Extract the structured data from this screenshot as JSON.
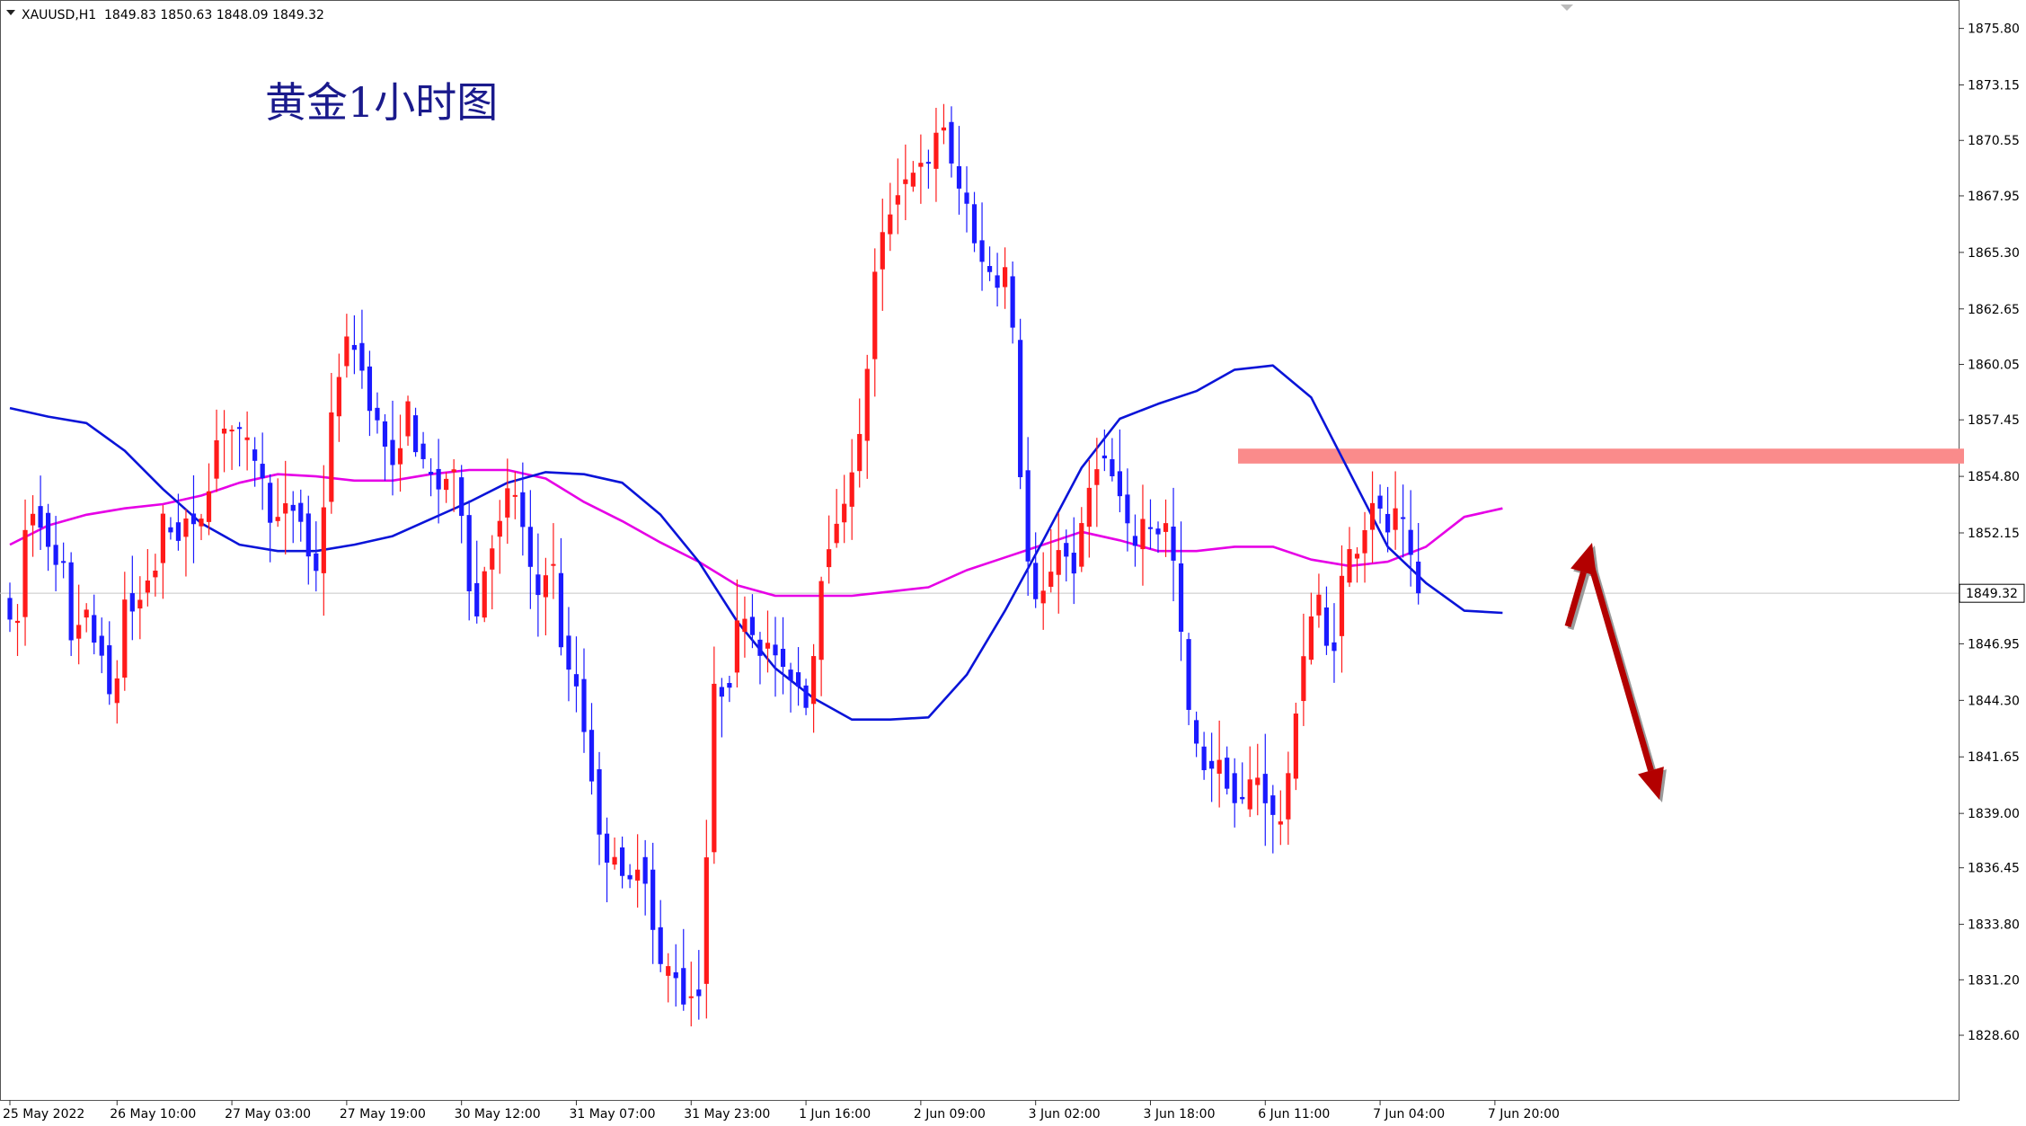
{
  "header": {
    "symbol": "XAUUSD,H1",
    "ohlc": "1849.83 1850.63 1848.09 1849.32"
  },
  "chart_data": {
    "type": "candlestick",
    "title": "黄金1小时图",
    "ylim": [
      1827.0,
      1876.5
    ],
    "grid": false,
    "y_ticks": [
      "1875.80",
      "1873.15",
      "1870.55",
      "1867.95",
      "1865.30",
      "1862.65",
      "1860.05",
      "1857.45",
      "1854.80",
      "1852.15",
      "1846.95",
      "1844.30",
      "1841.65",
      "1839.00",
      "1836.45",
      "1833.80",
      "1831.20",
      "1828.60"
    ],
    "x_ticks": [
      {
        "label": "25 May 2022",
        "bar": 0
      },
      {
        "label": "26 May 10:00",
        "bar": 14
      },
      {
        "label": "27 May 03:00",
        "bar": 29
      },
      {
        "label": "27 May 19:00",
        "bar": 44
      },
      {
        "label": "30 May 12:00",
        "bar": 59
      },
      {
        "label": "31 May 07:00",
        "bar": 74
      },
      {
        "label": "31 May 23:00",
        "bar": 89
      },
      {
        "label": "1 Jun 16:00",
        "bar": 104
      },
      {
        "label": "2 Jun 09:00",
        "bar": 119
      },
      {
        "label": "3 Jun 02:00",
        "bar": 134
      },
      {
        "label": "3 Jun 18:00",
        "bar": 149
      },
      {
        "label": "6 Jun 11:00",
        "bar": 164
      },
      {
        "label": "7 Jun 04:00",
        "bar": 179
      },
      {
        "label": "7 Jun 20:00",
        "bar": 194
      }
    ],
    "current_price": "1849.32",
    "resistance_zone": [
      1855.4,
      1856.1
    ],
    "blue_line_anchors": [
      [
        0,
        1858.0
      ],
      [
        5,
        1857.6
      ],
      [
        10,
        1857.3
      ],
      [
        15,
        1856.0
      ],
      [
        20,
        1854.2
      ],
      [
        25,
        1852.6
      ],
      [
        30,
        1851.6
      ],
      [
        35,
        1851.3
      ],
      [
        40,
        1851.3
      ],
      [
        45,
        1851.6
      ],
      [
        50,
        1852.0
      ],
      [
        55,
        1852.8
      ],
      [
        60,
        1853.6
      ],
      [
        65,
        1854.5
      ],
      [
        70,
        1855.0
      ],
      [
        75,
        1854.9
      ],
      [
        80,
        1854.5
      ],
      [
        85,
        1853.0
      ],
      [
        90,
        1850.8
      ],
      [
        95,
        1848.0
      ],
      [
        100,
        1845.8
      ],
      [
        105,
        1844.4
      ],
      [
        110,
        1843.4
      ],
      [
        115,
        1843.4
      ],
      [
        120,
        1843.5
      ],
      [
        125,
        1845.5
      ],
      [
        130,
        1848.5
      ],
      [
        135,
        1851.8
      ],
      [
        140,
        1855.2
      ],
      [
        145,
        1857.5
      ],
      [
        150,
        1858.2
      ],
      [
        155,
        1858.8
      ],
      [
        160,
        1859.8
      ],
      [
        165,
        1860.0
      ],
      [
        170,
        1858.5
      ],
      [
        175,
        1855.0
      ],
      [
        180,
        1851.5
      ],
      [
        185,
        1849.8
      ],
      [
        190,
        1848.5
      ],
      [
        195,
        1848.4
      ]
    ],
    "magenta_line_anchors": [
      [
        0,
        1851.6
      ],
      [
        5,
        1852.5
      ],
      [
        10,
        1853.0
      ],
      [
        15,
        1853.3
      ],
      [
        20,
        1853.5
      ],
      [
        25,
        1853.9
      ],
      [
        30,
        1854.5
      ],
      [
        35,
        1854.9
      ],
      [
        40,
        1854.8
      ],
      [
        45,
        1854.6
      ],
      [
        50,
        1854.6
      ],
      [
        55,
        1854.9
      ],
      [
        60,
        1855.1
      ],
      [
        65,
        1855.1
      ],
      [
        70,
        1854.7
      ],
      [
        75,
        1853.6
      ],
      [
        80,
        1852.7
      ],
      [
        85,
        1851.7
      ],
      [
        90,
        1850.8
      ],
      [
        95,
        1849.7
      ],
      [
        100,
        1849.2
      ],
      [
        105,
        1849.2
      ],
      [
        110,
        1849.2
      ],
      [
        115,
        1849.4
      ],
      [
        120,
        1849.6
      ],
      [
        125,
        1850.4
      ],
      [
        130,
        1851.0
      ],
      [
        135,
        1851.6
      ],
      [
        140,
        1852.2
      ],
      [
        145,
        1851.8
      ],
      [
        150,
        1851.3
      ],
      [
        155,
        1851.3
      ],
      [
        160,
        1851.5
      ],
      [
        165,
        1851.5
      ],
      [
        170,
        1850.9
      ],
      [
        175,
        1850.6
      ],
      [
        180,
        1850.8
      ],
      [
        185,
        1851.5
      ],
      [
        190,
        1852.9
      ],
      [
        195,
        1853.3
      ]
    ],
    "price_path": [
      [
        0,
        1849.5
      ],
      [
        1,
        1846.0
      ],
      [
        2,
        1850.0
      ],
      [
        3,
        1854.5
      ],
      [
        4,
        1852.0
      ],
      [
        5,
        1853.5
      ],
      [
        6,
        1849.0
      ],
      [
        7,
        1852.0
      ],
      [
        8,
        1849.0
      ],
      [
        9,
        1845.5
      ],
      [
        10,
        1850.5
      ],
      [
        11,
        1846.0
      ],
      [
        12,
        1848.0
      ],
      [
        13,
        1845.5
      ],
      [
        14,
        1843.0
      ],
      [
        15,
        1848.0
      ],
      [
        16,
        1850.0
      ],
      [
        17,
        1847.0
      ],
      [
        18,
        1851.0
      ],
      [
        19,
        1849.0
      ],
      [
        20,
        1852.0
      ],
      [
        21,
        1853.5
      ],
      [
        22,
        1851.0
      ],
      [
        23,
        1853.0
      ],
      [
        24,
        1852.5
      ],
      [
        25,
        1852.0
      ],
      [
        26,
        1854.0
      ],
      [
        27,
        1855.0
      ],
      [
        28,
        1858.0
      ],
      [
        29,
        1856.5
      ],
      [
        30,
        1857.5
      ],
      [
        31,
        1856.0
      ],
      [
        32,
        1856.5
      ],
      [
        33,
        1855.0
      ],
      [
        34,
        1854.0
      ],
      [
        35,
        1852.0
      ],
      [
        36,
        1853.5
      ],
      [
        37,
        1853.0
      ],
      [
        38,
        1853.5
      ],
      [
        39,
        1852.0
      ],
      [
        40,
        1850.0
      ],
      [
        41,
        1851.0
      ],
      [
        42,
        1856.0
      ],
      [
        43,
        1859.0
      ],
      [
        44,
        1860.5
      ],
      [
        45,
        1861.5
      ],
      [
        46,
        1860.5
      ],
      [
        47,
        1859.0
      ],
      [
        48,
        1857.5
      ],
      [
        49,
        1857.0
      ],
      [
        50,
        1855.5
      ],
      [
        51,
        1854.5
      ],
      [
        52,
        1858.5
      ],
      [
        53,
        1857.5
      ],
      [
        54,
        1855.0
      ],
      [
        55,
        1855.5
      ],
      [
        56,
        1854.0
      ],
      [
        57,
        1854.5
      ],
      [
        58,
        1855.0
      ],
      [
        59,
        1854.5
      ],
      [
        60,
        1852.0
      ],
      [
        61,
        1847.5
      ],
      [
        62,
        1849.0
      ],
      [
        63,
        1852.0
      ],
      [
        64,
        1851.5
      ],
      [
        65,
        1853.5
      ],
      [
        66,
        1854.5
      ],
      [
        67,
        1853.5
      ],
      [
        68,
        1851.0
      ],
      [
        69,
        1849.5
      ],
      [
        70,
        1849.0
      ],
      [
        71,
        1852.0
      ],
      [
        72,
        1849.0
      ],
      [
        73,
        1845.0
      ],
      [
        74,
        1846.0
      ],
      [
        75,
        1844.0
      ],
      [
        76,
        1842.0
      ],
      [
        77,
        1839.5
      ],
      [
        78,
        1836.0
      ],
      [
        79,
        1838.0
      ],
      [
        80,
        1836.5
      ],
      [
        81,
        1835.0
      ],
      [
        82,
        1836.5
      ],
      [
        83,
        1837.0
      ],
      [
        84,
        1835.0
      ],
      [
        85,
        1832.0
      ],
      [
        86,
        1831.5
      ],
      [
        87,
        1832.0
      ],
      [
        88,
        1831.0
      ],
      [
        89,
        1829.5
      ],
      [
        90,
        1831.5
      ],
      [
        91,
        1830.0
      ],
      [
        92,
        1844.0
      ],
      [
        93,
        1845.5
      ],
      [
        94,
        1844.0
      ],
      [
        95,
        1846.5
      ],
      [
        96,
        1849.0
      ],
      [
        97,
        1848.0
      ],
      [
        98,
        1847.0
      ],
      [
        99,
        1846.5
      ],
      [
        100,
        1847.0
      ],
      [
        101,
        1846.0
      ],
      [
        102,
        1845.0
      ],
      [
        103,
        1846.0
      ],
      [
        104,
        1844.0
      ],
      [
        105,
        1844.5
      ],
      [
        106,
        1848.5
      ],
      [
        107,
        1852.0
      ],
      [
        108,
        1851.5
      ],
      [
        109,
        1853.0
      ],
      [
        110,
        1854.5
      ],
      [
        111,
        1856.0
      ],
      [
        112,
        1857.0
      ],
      [
        113,
        1863.0
      ],
      [
        114,
        1865.5
      ],
      [
        115,
        1866.5
      ],
      [
        116,
        1868.0
      ],
      [
        117,
        1868.5
      ],
      [
        118,
        1869.0
      ],
      [
        119,
        1869.5
      ],
      [
        120,
        1869.0
      ],
      [
        121,
        1869.5
      ],
      [
        122,
        1872.5
      ],
      [
        123,
        1870.0
      ],
      [
        124,
        1868.5
      ],
      [
        125,
        1868.0
      ],
      [
        126,
        1867.0
      ],
      [
        127,
        1865.0
      ],
      [
        128,
        1864.5
      ],
      [
        129,
        1864.5
      ],
      [
        130,
        1863.5
      ],
      [
        131,
        1865.5
      ],
      [
        132,
        1857.5
      ],
      [
        133,
        1852.5
      ],
      [
        134,
        1849.0
      ],
      [
        135,
        1848.5
      ],
      [
        136,
        1850.0
      ],
      [
        137,
        1851.0
      ],
      [
        138,
        1852.0
      ],
      [
        139,
        1850.0
      ],
      [
        140,
        1851.0
      ],
      [
        141,
        1853.5
      ],
      [
        142,
        1855.0
      ],
      [
        143,
        1856.0
      ],
      [
        144,
        1855.0
      ],
      [
        145,
        1854.5
      ],
      [
        146,
        1853.0
      ],
      [
        147,
        1851.5
      ],
      [
        148,
        1852.0
      ],
      [
        149,
        1853.5
      ],
      [
        150,
        1851.5
      ],
      [
        151,
        1853.0
      ],
      [
        152,
        1852.0
      ],
      [
        153,
        1849.5
      ],
      [
        154,
        1845.0
      ],
      [
        155,
        1842.5
      ],
      [
        156,
        1841.5
      ],
      [
        157,
        1841.0
      ],
      [
        158,
        1841.5
      ],
      [
        159,
        1841.0
      ],
      [
        160,
        1840.0
      ],
      [
        161,
        1839.0
      ],
      [
        162,
        1840.0
      ],
      [
        163,
        1841.0
      ],
      [
        164,
        1840.5
      ],
      [
        165,
        1839.0
      ],
      [
        166,
        1838.5
      ],
      [
        167,
        1839.0
      ],
      [
        168,
        1842.0
      ],
      [
        169,
        1846.0
      ],
      [
        170,
        1847.0
      ],
      [
        171,
        1849.5
      ],
      [
        172,
        1848.5
      ],
      [
        173,
        1845.0
      ],
      [
        174,
        1849.0
      ],
      [
        175,
        1851.0
      ],
      [
        176,
        1851.5
      ],
      [
        177,
        1851.5
      ],
      [
        178,
        1853.5
      ],
      [
        179,
        1854.0
      ],
      [
        180,
        1852.0
      ],
      [
        181,
        1852.5
      ],
      [
        182,
        1853.5
      ],
      [
        183,
        1851.5
      ],
      [
        184,
        1850.0
      ]
    ],
    "annotation_arrows": "up then down (dark red)"
  }
}
